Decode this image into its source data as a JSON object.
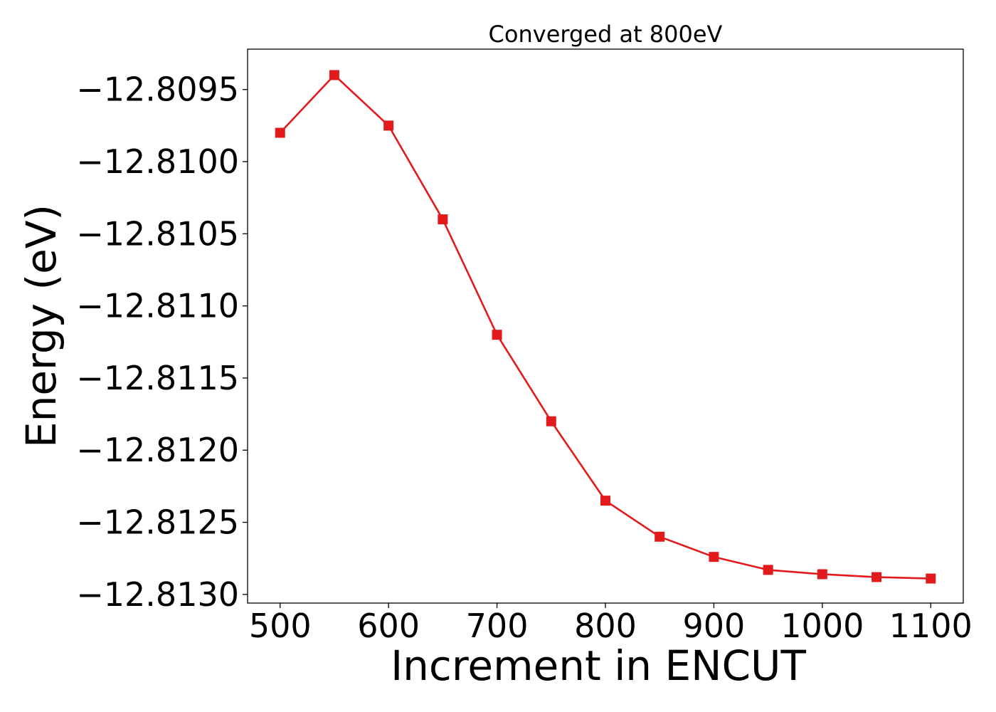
{
  "chart_data": {
    "type": "line",
    "title": "Converged at 800eV",
    "xlabel": "Increment in ENCUT",
    "ylabel": "Energy (eV)",
    "x": [
      500,
      550,
      600,
      650,
      700,
      750,
      800,
      850,
      900,
      950,
      1000,
      1050,
      1100
    ],
    "series": [
      {
        "values": [
          -12.8098,
          -12.8094,
          -12.80975,
          -12.8104,
          -12.8112,
          -12.8118,
          -12.81235,
          -12.8126,
          -12.81274,
          -12.81283,
          -12.81286,
          -12.81288,
          -12.81289
        ],
        "color": "#e31a1c",
        "marker": "square"
      }
    ],
    "xlim": [
      470,
      1130
    ],
    "ylim": [
      -12.81306,
      -12.80922
    ],
    "xticks": [
      500,
      600,
      700,
      800,
      900,
      1000,
      1100
    ],
    "xtick_labels": [
      "500",
      "600",
      "700",
      "800",
      "900",
      "1000",
      "1100"
    ],
    "yticks": [
      -12.8095,
      -12.81,
      -12.8105,
      -12.811,
      -12.8115,
      -12.812,
      -12.8125,
      -12.813
    ],
    "ytick_labels": [
      "−12.8095",
      "−12.8100",
      "−12.8105",
      "−12.8110",
      "−12.8115",
      "−12.8120",
      "−12.8125",
      "−12.8130"
    ],
    "grid": false,
    "legend": "none"
  }
}
